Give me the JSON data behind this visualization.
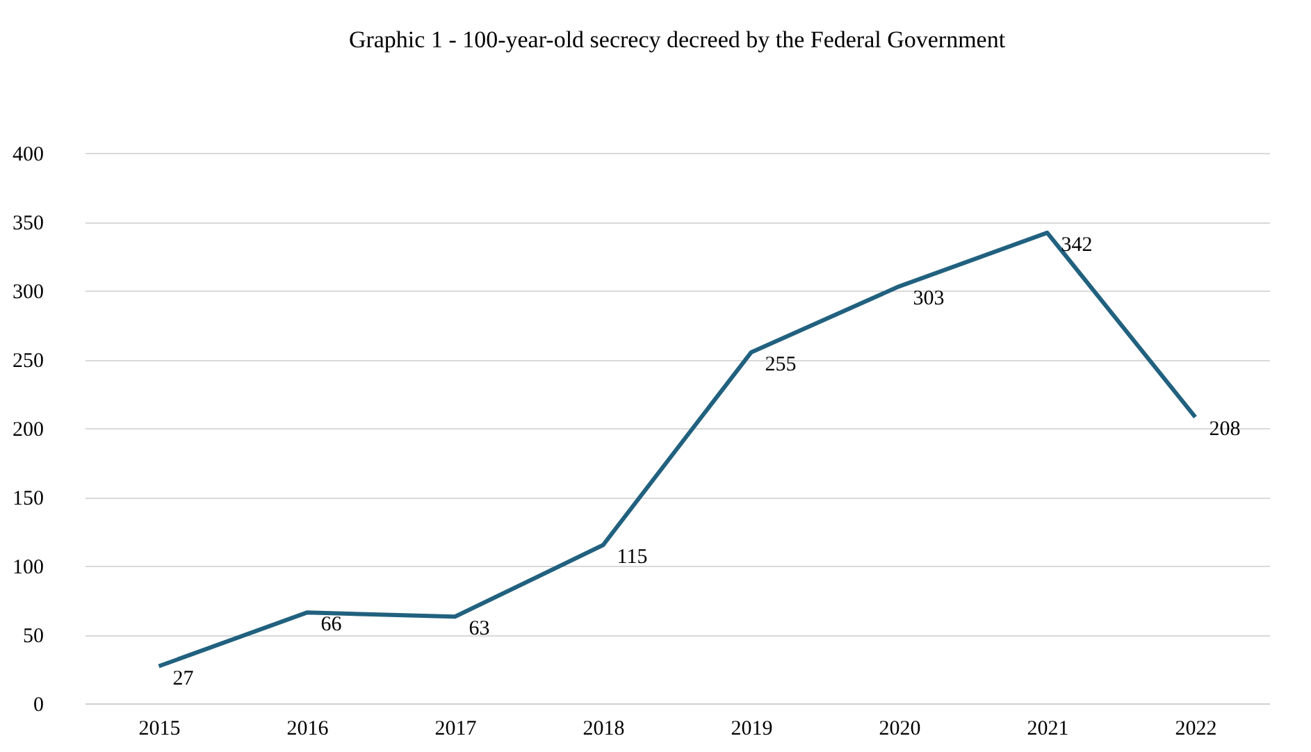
{
  "chart_data": {
    "type": "line",
    "title": "Graphic 1 - 100-year-old secrecy decreed by the Federal Government",
    "categories": [
      "2015",
      "2016",
      "2017",
      "2018",
      "2019",
      "2020",
      "2021",
      "2022"
    ],
    "series": [
      {
        "color": "#21617f",
        "values": [
          27,
          66,
          63,
          115,
          255,
          303,
          342,
          208
        ]
      }
    ],
    "ylim": [
      0,
      400
    ],
    "yticks": [
      0,
      50,
      100,
      150,
      200,
      250,
      300,
      350,
      400
    ],
    "grid": "y",
    "data_labels": true,
    "marker": "none",
    "line_style": "solid"
  }
}
